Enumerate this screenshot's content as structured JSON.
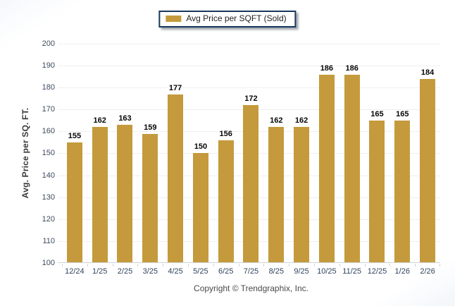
{
  "legend": {
    "label": "Avg Price per SQFT (Sold)"
  },
  "chart_data": {
    "type": "bar",
    "title": "",
    "series_name": "Avg Price per SQFT (Sold)",
    "categories": [
      "12/24",
      "1/25",
      "2/25",
      "3/25",
      "4/25",
      "5/25",
      "6/25",
      "7/25",
      "8/25",
      "9/25",
      "10/25",
      "11/25",
      "12/25",
      "1/26",
      "2/26"
    ],
    "values": [
      155,
      162,
      163,
      159,
      177,
      150,
      156,
      172,
      162,
      162,
      186,
      186,
      165,
      165,
      184
    ],
    "xlabel": "",
    "ylabel": "Avg. Price per SQ. FT.",
    "ylim": [
      100,
      200
    ],
    "yticks": [
      100,
      110,
      120,
      130,
      140,
      150,
      160,
      170,
      180,
      190,
      200
    ],
    "grid": "horizontal",
    "legend_position": "top-center",
    "value_labels": true,
    "bar_color": "#C49A3C"
  },
  "colors": {
    "bar": "#C49A3C",
    "legend_border": "#17375D",
    "gridline": "#EFEFEF",
    "axis_line": "#CFD4D9",
    "tick_label": "#31445C",
    "value_label": "#060606",
    "axis_title": "#3A3A3A",
    "footer_text": "#4A4A4A"
  },
  "footer": {
    "copyright": "Copyright © Trendgraphix, Inc."
  }
}
